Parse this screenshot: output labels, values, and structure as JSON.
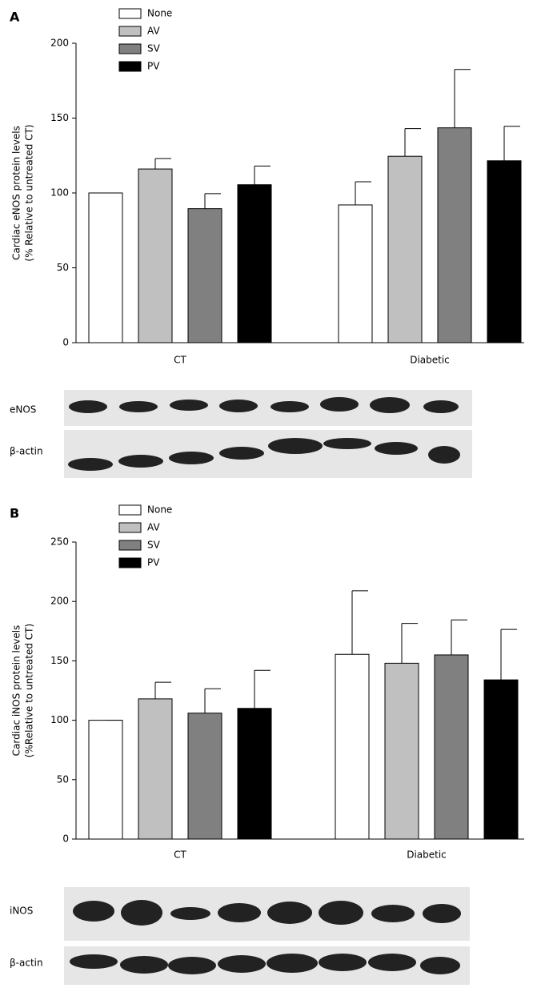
{
  "chart_data": [
    {
      "type": "bar",
      "panel_label": "A",
      "y_label": [
        "Cardiac eNOS protein levels",
        "(% Relative to untreated CT)"
      ],
      "categories": [
        "CT",
        "Diabetic"
      ],
      "series": [
        {
          "name": "None",
          "color": "#ffffff",
          "values": [
            100,
            92
          ],
          "errors": [
            0,
            15.5
          ]
        },
        {
          "name": "AV",
          "color": "#c0c0c0",
          "values": [
            116,
            124.5
          ],
          "errors": [
            7,
            18.5
          ]
        },
        {
          "name": "SV",
          "color": "#808080",
          "values": [
            89.5,
            143.5
          ],
          "errors": [
            10,
            39
          ]
        },
        {
          "name": "PV",
          "color": "#000000",
          "values": [
            105.5,
            121.5
          ],
          "errors": [
            12.5,
            23
          ]
        }
      ],
      "ylim": [
        0,
        200
      ],
      "yticks": [
        0,
        50,
        100,
        150,
        200
      ],
      "blot_labels": [
        "eNOS",
        "β-actin"
      ]
    },
    {
      "type": "bar",
      "panel_label": "B",
      "y_label": [
        "Cardiac iNOS protein levels",
        "(%Relative to untreated CT)"
      ],
      "categories": [
        "CT",
        "Diabetic"
      ],
      "series": [
        {
          "name": "None",
          "color": "#ffffff",
          "values": [
            100,
            155.5
          ],
          "errors": [
            0,
            53.5
          ]
        },
        {
          "name": "AV",
          "color": "#c0c0c0",
          "values": [
            118,
            148
          ],
          "errors": [
            14,
            33.5
          ]
        },
        {
          "name": "SV",
          "color": "#808080",
          "values": [
            106,
            155
          ],
          "errors": [
            20.5,
            29.5
          ]
        },
        {
          "name": "PV",
          "color": "#000000",
          "values": [
            110,
            134
          ],
          "errors": [
            32,
            42.5
          ]
        }
      ],
      "ylim": [
        0,
        250
      ],
      "yticks": [
        0,
        50,
        100,
        150,
        200,
        250
      ],
      "blot_labels": [
        "iNOS",
        "β-actin"
      ]
    }
  ]
}
